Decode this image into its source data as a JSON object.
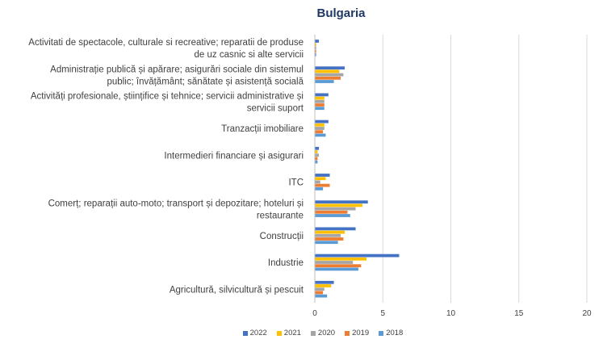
{
  "chart_data": {
    "type": "bar",
    "orientation": "horizontal",
    "title": "Bulgaria",
    "categories": [
      [
        "Activitati de spectacole, culturale si recreative; reparatii de produse",
        "de uz casnic si alte servicii"
      ],
      [
        "Administrație publică și apărare; asigurări sociale din sistemul",
        "public; învățământ; sănătate și asistență socială"
      ],
      [
        "Activități profesionale, științifice și tehnice; servicii administrative și",
        "servicii suport"
      ],
      [
        "Tranzacții imobiliare"
      ],
      [
        "Intermedieri financiare și asigurari"
      ],
      [
        "ITC"
      ],
      [
        "Comerț; reparații auto-moto; transport și depozitare; hoteluri și",
        "restaurante"
      ],
      [
        "Construcții"
      ],
      [
        "Industrie"
      ],
      [
        "Agricultură, silvicultură și pescuit"
      ]
    ],
    "series": [
      {
        "name": "2022",
        "color": "#4472c4",
        "values": [
          0.3,
          2.2,
          1.0,
          1.0,
          0.3,
          1.1,
          3.9,
          3.0,
          6.2,
          1.4
        ]
      },
      {
        "name": "2021",
        "color": "#ffc000",
        "values": [
          0.1,
          1.8,
          0.7,
          0.7,
          0.2,
          0.8,
          3.5,
          2.2,
          3.8,
          1.2
        ]
      },
      {
        "name": "2020",
        "color": "#a5a5a5",
        "values": [
          0.1,
          2.1,
          0.7,
          0.7,
          0.3,
          0.4,
          3.0,
          1.9,
          2.8,
          0.7
        ]
      },
      {
        "name": "2019",
        "color": "#ed7d31",
        "values": [
          0.1,
          1.9,
          0.7,
          0.6,
          0.2,
          1.1,
          2.4,
          2.1,
          3.4,
          0.6
        ]
      },
      {
        "name": "2018",
        "color": "#5b9bd5",
        "values": [
          0.1,
          1.4,
          0.7,
          0.8,
          0.2,
          0.6,
          2.6,
          1.7,
          3.2,
          0.9
        ]
      }
    ],
    "xlim": [
      0,
      20
    ],
    "xticks": [
      "0",
      "5",
      "10",
      "15",
      "20"
    ],
    "grid": true,
    "legend_position": "bottom"
  }
}
